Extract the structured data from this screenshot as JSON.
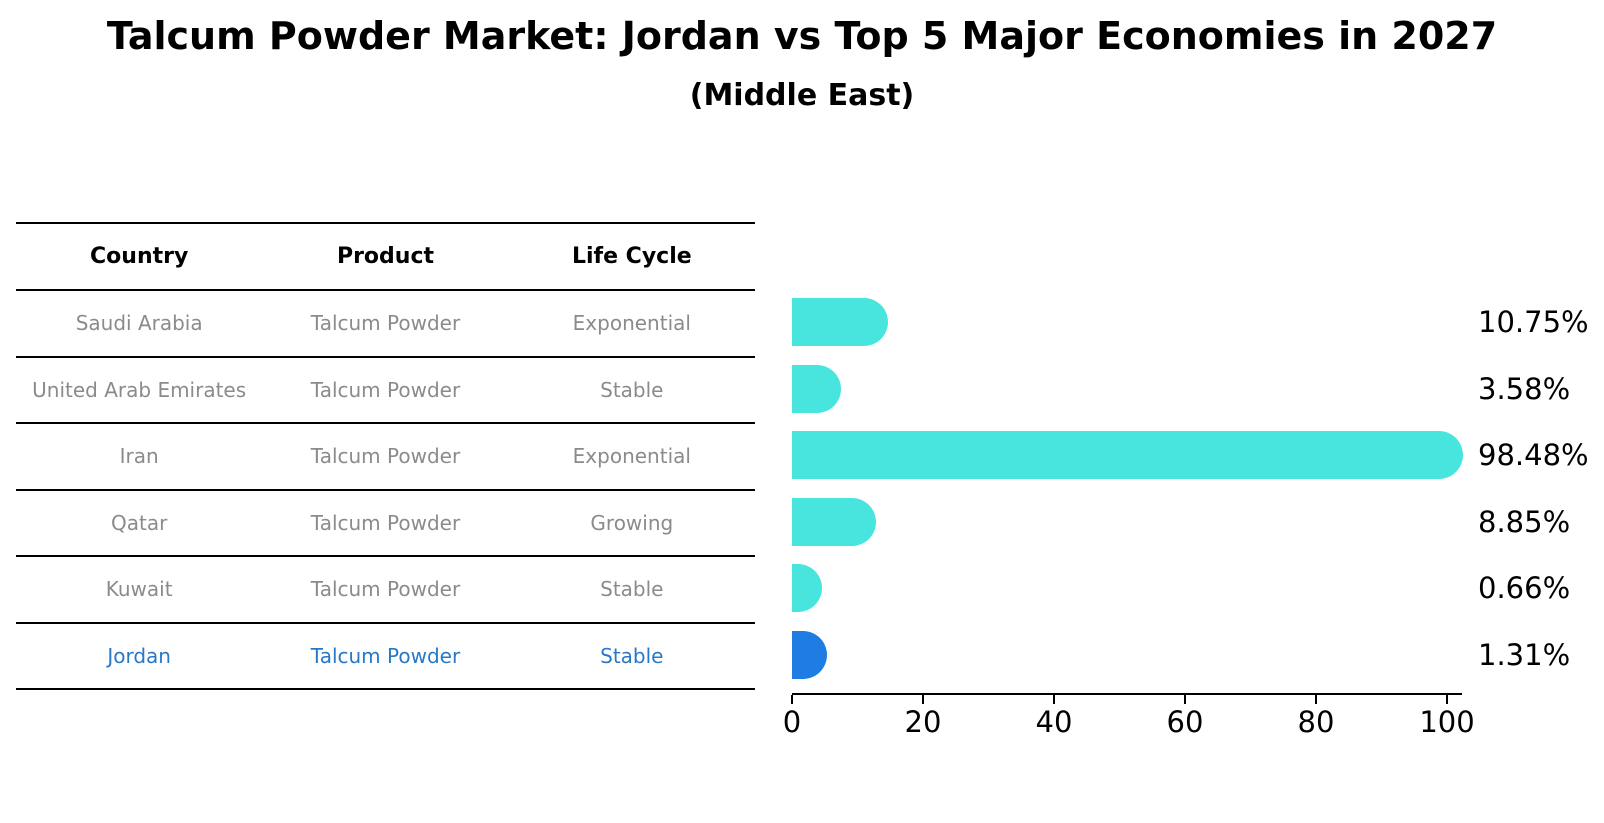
{
  "chart": {
    "title": "Talcum Powder Market: Jordan vs Top 5 Major Economies in 2027",
    "subtitle": "(Middle East)"
  },
  "table": {
    "headers": [
      "Country",
      "Product",
      "Life Cycle"
    ],
    "rows": [
      {
        "country": "Saudi Arabia",
        "product": "Talcum Powder",
        "life_cycle": "Exponential",
        "highlight": false
      },
      {
        "country": "United Arab Emirates",
        "product": "Talcum Powder",
        "life_cycle": "Stable",
        "highlight": false
      },
      {
        "country": "Iran",
        "product": "Talcum Powder",
        "life_cycle": "Exponential",
        "highlight": false
      },
      {
        "country": "Qatar",
        "product": "Talcum Powder",
        "life_cycle": "Growing",
        "highlight": false
      },
      {
        "country": "Kuwait",
        "product": "Talcum Powder",
        "life_cycle": "Stable",
        "highlight": false
      },
      {
        "country": "Jordan",
        "product": "Talcum Powder",
        "life_cycle": "Stable",
        "highlight": true
      }
    ]
  },
  "chart_data": {
    "type": "bar",
    "orientation": "horizontal",
    "title": "Talcum Powder Market: Jordan vs Top 5 Major Economies in 2027 (Middle East)",
    "categories": [
      "Saudi Arabia",
      "United Arab Emirates",
      "Iran",
      "Qatar",
      "Kuwait",
      "Jordan"
    ],
    "values": [
      10.75,
      3.58,
      98.48,
      8.85,
      0.66,
      1.31
    ],
    "value_labels": [
      "10.75%",
      "3.58%",
      "98.48%",
      "8.85%",
      "0.66%",
      "1.31%"
    ],
    "xlabel": "",
    "ylabel": "",
    "xlim": [
      0,
      102
    ],
    "xticks": [
      0,
      20,
      40,
      60,
      80,
      100
    ],
    "grid": false,
    "legend": null,
    "bar_color": "#48E5DF",
    "highlight_color": "#1E7CE3",
    "highlight_index": 5,
    "highlight_text_color": "#2878C8"
  }
}
